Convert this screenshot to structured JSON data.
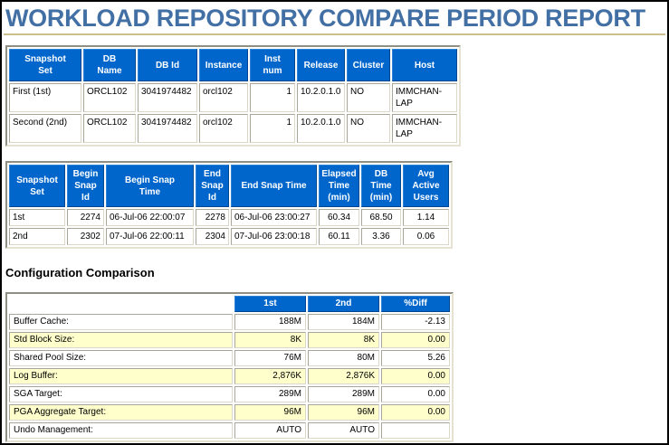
{
  "page": {
    "title": "WORKLOAD REPOSITORY COMPARE PERIOD REPORT"
  },
  "colors": {
    "title_blue": "#4270A5",
    "rule_tan": "#CBC08D",
    "header_blue": "#0066CC",
    "zebra_yellow": "#FFFFCC"
  },
  "snapshot_table": {
    "headers": [
      "Snapshot\nSet",
      "DB\nName",
      "DB Id",
      "Instance",
      "Inst\nnum",
      "Release",
      "Cluster",
      "Host"
    ],
    "rows": [
      [
        "First (1st)",
        "ORCL102",
        "3041974482",
        "orcl102",
        "1",
        "10.2.0.1.0",
        "NO",
        "IMMCHAN-LAP"
      ],
      [
        "Second (2nd)",
        "ORCL102",
        "3041974482",
        "orcl102",
        "1",
        "10.2.0.1.0",
        "NO",
        "IMMCHAN-LAP"
      ]
    ]
  },
  "snap_time_table": {
    "headers": [
      "Snapshot\nSet",
      "Begin\nSnap\nId",
      "Begin Snap\nTime",
      "End\nSnap\nId",
      "End Snap Time",
      "Elapsed\nTime\n(min)",
      "DB\nTime\n(min)",
      "Avg\nActive\nUsers"
    ],
    "rows": [
      [
        "1st",
        "2274",
        "06-Jul-06 22:00:07",
        "2278",
        "06-Jul-06 23:00:27",
        "60.34",
        "68.50",
        "1.14"
      ],
      [
        "2nd",
        "2302",
        "07-Jul-06 22:00:11",
        "2304",
        "07-Jul-06 23:00:18",
        "60.11",
        "3.36",
        "0.06"
      ]
    ]
  },
  "config_section": {
    "heading": "Configuration Comparison",
    "headers": [
      "",
      "1st",
      "2nd",
      "%Diff"
    ],
    "rows": [
      [
        "Buffer Cache:",
        "188M",
        "184M",
        "-2.13"
      ],
      [
        "Std Block Size:",
        "8K",
        "8K",
        "0.00"
      ],
      [
        "Shared Pool Size:",
        "76M",
        "80M",
        "5.26"
      ],
      [
        "Log Buffer:",
        "2,876K",
        "2,876K",
        "0.00"
      ],
      [
        "SGA Target:",
        "289M",
        "289M",
        "0.00"
      ],
      [
        "PGA Aggregate Target:",
        "96M",
        "96M",
        "0.00"
      ],
      [
        "Undo Management:",
        "AUTO",
        "AUTO",
        ""
      ]
    ]
  }
}
